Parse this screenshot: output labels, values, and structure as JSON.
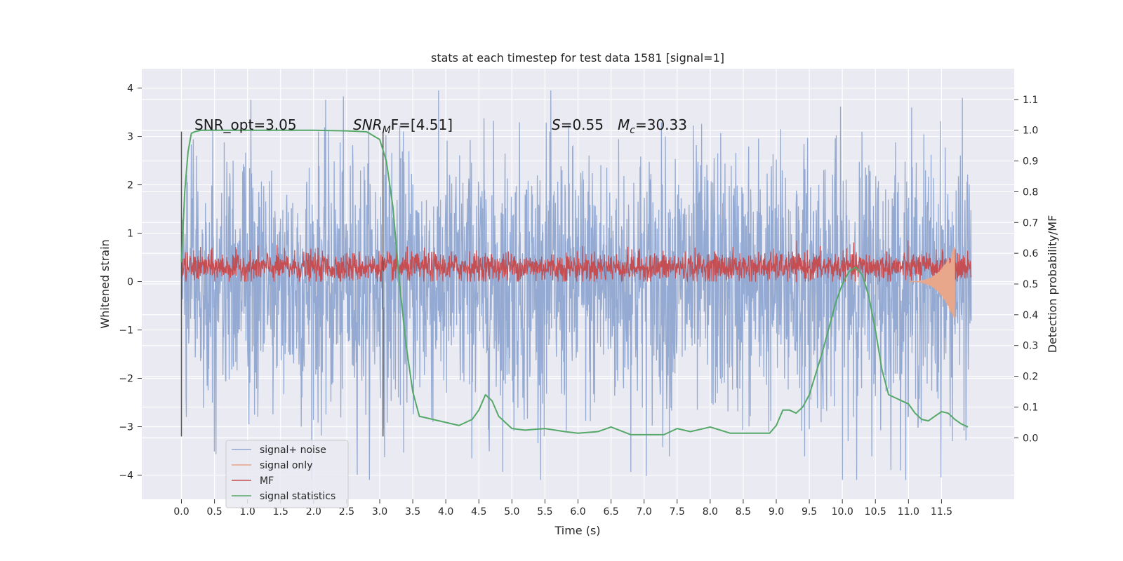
{
  "chart_data": {
    "type": "line",
    "title": "stats at each timestep for test data 1581 [signal=1]",
    "xlabel": "Time (s)",
    "ylabel_left": "Whitened strain",
    "ylabel_right": "Detection probability/MF",
    "xlim": [
      -0.6,
      12.6
    ],
    "ylim_left": [
      -4.5,
      4.4
    ],
    "ylim_right": [
      -0.2,
      1.2
    ],
    "x_ticks": [
      0.0,
      0.5,
      1.0,
      1.5,
      2.0,
      2.5,
      3.0,
      3.5,
      4.0,
      4.5,
      5.0,
      5.5,
      6.0,
      6.5,
      7.0,
      7.5,
      8.0,
      8.5,
      9.0,
      9.5,
      10.0,
      10.5,
      11.0,
      11.5
    ],
    "x_tick_labels": [
      "0.0",
      "0.5",
      "1.0",
      "1.5",
      "2.0",
      "2.5",
      "3.0",
      "3.5",
      "4.0",
      "4.5",
      "5.0",
      "5.5",
      "6.0",
      "6.5",
      "7.0",
      "7.5",
      "8.0",
      "8.5",
      "9.0",
      "9.5",
      "10.0",
      "10.5",
      "11.0",
      "11.5"
    ],
    "y_left_ticks": [
      -4,
      -3,
      -2,
      -1,
      0,
      1,
      2,
      3,
      4
    ],
    "y_left_tick_labels": [
      "−4",
      "−3",
      "−2",
      "−1",
      "0",
      "1",
      "2",
      "3",
      "4"
    ],
    "y_right_ticks": [
      0.0,
      0.1,
      0.2,
      0.3,
      0.4,
      0.5,
      0.6,
      0.7,
      0.8,
      0.9,
      1.0,
      1.1
    ],
    "y_right_tick_labels": [
      "0.0",
      "0.1",
      "0.2",
      "0.3",
      "0.4",
      "0.5",
      "0.6",
      "0.7",
      "0.8",
      "0.9",
      "1.0",
      "1.1"
    ],
    "grid": true,
    "legend_position": "lower-left",
    "annotations": {
      "snr_opt": "SNR_opt=3.05",
      "snr_mf_prefix": "SNR",
      "snr_mf_sub": "M",
      "snr_mf_suffix": "F=[4.51]",
      "s_prefix": "S",
      "s_value": "=0.55",
      "mc_prefix": "M",
      "mc_sub": "c",
      "mc_value": "=30.33"
    },
    "vlines": [
      0.0,
      3.05
    ],
    "vline_range": [
      -3.2,
      3.1
    ],
    "series": [
      {
        "name": "signal+ noise",
        "color": "#8fa6d0",
        "axis": "left",
        "kind": "noise",
        "x_range": [
          0.0,
          11.95
        ],
        "center": 0.0,
        "typical_amplitude": 2.3,
        "max": 3.95,
        "min": -4.1
      },
      {
        "name": "signal only",
        "color": "#e8a68a",
        "axis": "left",
        "kind": "chirp",
        "x_range": [
          11.0,
          11.7
        ],
        "center": 0.0,
        "max": 0.75,
        "min": -0.82
      },
      {
        "name": "MF",
        "color": "#c44e52",
        "axis": "left",
        "kind": "noise",
        "x_range": [
          0.0,
          11.95
        ],
        "center": 0.3,
        "typical_amplitude": 0.28,
        "max": 1.0,
        "min": 0.0
      },
      {
        "name": "signal statistics",
        "color": "#55a868",
        "axis": "right",
        "kind": "line",
        "x": [
          0.0,
          0.05,
          0.1,
          0.15,
          0.2,
          0.3,
          0.5,
          1.0,
          1.5,
          2.0,
          2.5,
          2.8,
          3.0,
          3.1,
          3.2,
          3.3,
          3.4,
          3.5,
          3.6,
          3.8,
          4.0,
          4.2,
          4.4,
          4.5,
          4.6,
          4.7,
          4.8,
          5.0,
          5.2,
          5.5,
          5.8,
          6.0,
          6.3,
          6.5,
          6.8,
          7.0,
          7.3,
          7.5,
          7.7,
          8.0,
          8.3,
          8.6,
          8.9,
          9.0,
          9.1,
          9.2,
          9.3,
          9.4,
          9.5,
          9.6,
          9.7,
          9.8,
          9.9,
          10.0,
          10.1,
          10.2,
          10.3,
          10.4,
          10.5,
          10.6,
          10.7,
          10.8,
          10.9,
          11.0,
          11.1,
          11.2,
          11.3,
          11.4,
          11.5,
          11.6,
          11.7,
          11.8,
          11.9
        ],
        "y": [
          0.57,
          0.8,
          0.93,
          0.99,
          0.995,
          1.0,
          1.0,
          1.0,
          1.0,
          1.0,
          0.998,
          0.995,
          0.97,
          0.9,
          0.75,
          0.5,
          0.3,
          0.15,
          0.07,
          0.06,
          0.05,
          0.04,
          0.06,
          0.09,
          0.14,
          0.12,
          0.07,
          0.03,
          0.025,
          0.03,
          0.02,
          0.015,
          0.02,
          0.035,
          0.01,
          0.01,
          0.01,
          0.03,
          0.02,
          0.035,
          0.015,
          0.015,
          0.015,
          0.04,
          0.09,
          0.09,
          0.08,
          0.1,
          0.14,
          0.21,
          0.28,
          0.36,
          0.44,
          0.5,
          0.54,
          0.555,
          0.53,
          0.46,
          0.35,
          0.22,
          0.14,
          0.13,
          0.12,
          0.11,
          0.08,
          0.06,
          0.055,
          0.07,
          0.085,
          0.08,
          0.06,
          0.045,
          0.035
        ]
      }
    ]
  }
}
